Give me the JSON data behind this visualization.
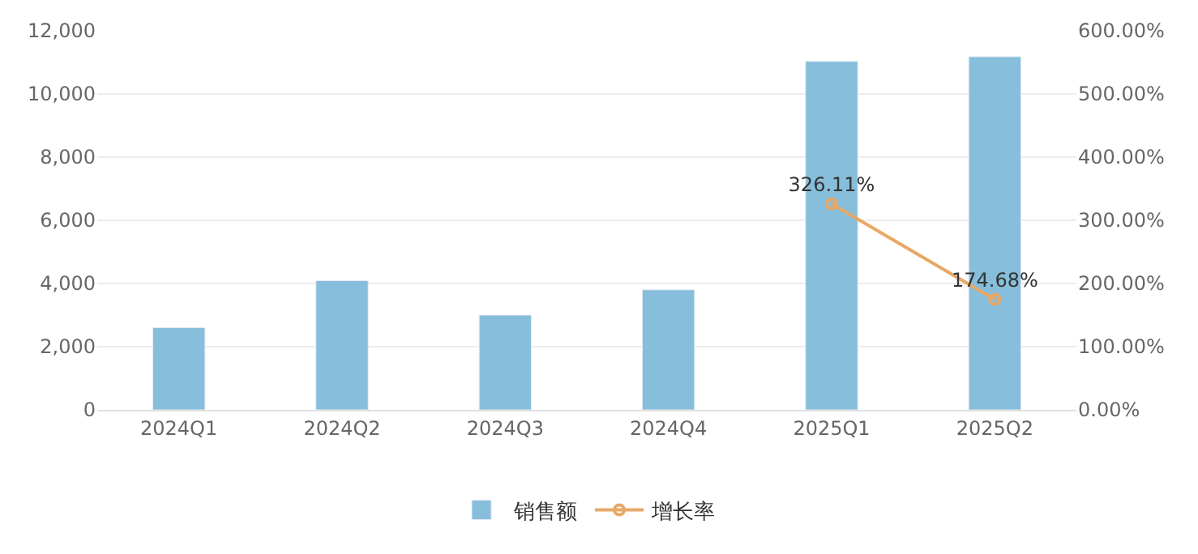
{
  "chart_data": {
    "type": "bar",
    "categories": [
      "2024Q1",
      "2024Q2",
      "2024Q3",
      "2024Q4",
      "2025Q1",
      "2025Q2"
    ],
    "series": [
      {
        "name": "销售额",
        "color": "#86bedb",
        "values": [
          2600,
          4090,
          3000,
          3800,
          11030,
          11180
        ]
      },
      {
        "name": "增长率",
        "type": "line",
        "axis": "y2",
        "color": "#e8a866",
        "marker": "circle",
        "values": [
          null,
          null,
          null,
          null,
          326.11,
          174.68
        ],
        "value_labels": [
          null,
          null,
          null,
          null,
          "326.11%",
          "174.68%"
        ]
      }
    ],
    "ylim": [
      0,
      12000
    ],
    "yticks": [
      {
        "value": 0,
        "label": "0"
      },
      {
        "value": 2000,
        "label": "2,000"
      },
      {
        "value": 4000,
        "label": "4,000"
      },
      {
        "value": 6000,
        "label": "6,000"
      },
      {
        "value": 8000,
        "label": "8,000"
      },
      {
        "value": 10000,
        "label": "10,000"
      },
      {
        "value": 12000,
        "label": "12,000"
      }
    ],
    "y2lim": [
      0,
      600
    ],
    "y2ticks": [
      {
        "value": 0,
        "label": "0.00%"
      },
      {
        "value": 100,
        "label": "100.00%"
      },
      {
        "value": 200,
        "label": "200.00%"
      },
      {
        "value": 300,
        "label": "300.00%"
      },
      {
        "value": 400,
        "label": "400.00%"
      },
      {
        "value": 500,
        "label": "500.00%"
      },
      {
        "value": 600,
        "label": "600.00%"
      }
    ],
    "grid": "y",
    "legend": "bottom"
  }
}
